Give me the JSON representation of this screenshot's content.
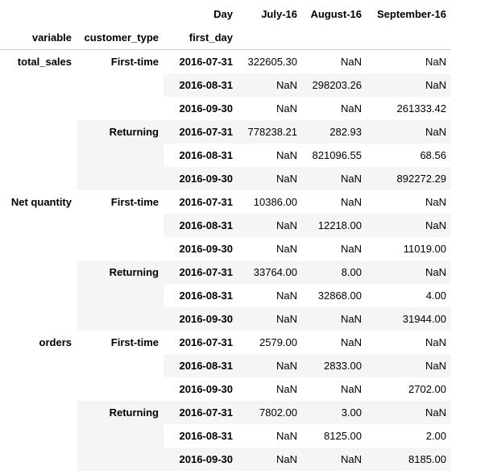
{
  "header": {
    "columns_label": "Day",
    "months": [
      "July-16",
      "August-16",
      "September-16"
    ],
    "index_names": [
      "variable",
      "customer_type",
      "first_day"
    ]
  },
  "groups": [
    {
      "variable": "total_sales",
      "sub": [
        {
          "customer_type": "First-time",
          "rows": [
            {
              "first_day": "2016-07-31",
              "values": [
                "322605.30",
                "NaN",
                "NaN"
              ]
            },
            {
              "first_day": "2016-08-31",
              "values": [
                "NaN",
                "298203.26",
                "NaN"
              ]
            },
            {
              "first_day": "2016-09-30",
              "values": [
                "NaN",
                "NaN",
                "261333.42"
              ]
            }
          ]
        },
        {
          "customer_type": "Returning",
          "rows": [
            {
              "first_day": "2016-07-31",
              "values": [
                "778238.21",
                "282.93",
                "NaN"
              ]
            },
            {
              "first_day": "2016-08-31",
              "values": [
                "NaN",
                "821096.55",
                "68.56"
              ]
            },
            {
              "first_day": "2016-09-30",
              "values": [
                "NaN",
                "NaN",
                "892272.29"
              ]
            }
          ]
        }
      ]
    },
    {
      "variable": "Net quantity",
      "sub": [
        {
          "customer_type": "First-time",
          "rows": [
            {
              "first_day": "2016-07-31",
              "values": [
                "10386.00",
                "NaN",
                "NaN"
              ]
            },
            {
              "first_day": "2016-08-31",
              "values": [
                "NaN",
                "12218.00",
                "NaN"
              ]
            },
            {
              "first_day": "2016-09-30",
              "values": [
                "NaN",
                "NaN",
                "11019.00"
              ]
            }
          ]
        },
        {
          "customer_type": "Returning",
          "rows": [
            {
              "first_day": "2016-07-31",
              "values": [
                "33764.00",
                "8.00",
                "NaN"
              ]
            },
            {
              "first_day": "2016-08-31",
              "values": [
                "NaN",
                "32868.00",
                "4.00"
              ]
            },
            {
              "first_day": "2016-09-30",
              "values": [
                "NaN",
                "NaN",
                "31944.00"
              ]
            }
          ]
        }
      ]
    },
    {
      "variable": "orders",
      "sub": [
        {
          "customer_type": "First-time",
          "rows": [
            {
              "first_day": "2016-07-31",
              "values": [
                "2579.00",
                "NaN",
                "NaN"
              ]
            },
            {
              "first_day": "2016-08-31",
              "values": [
                "NaN",
                "2833.00",
                "NaN"
              ]
            },
            {
              "first_day": "2016-09-30",
              "values": [
                "NaN",
                "NaN",
                "2702.00"
              ]
            }
          ]
        },
        {
          "customer_type": "Returning",
          "rows": [
            {
              "first_day": "2016-07-31",
              "values": [
                "7802.00",
                "3.00",
                "NaN"
              ]
            },
            {
              "first_day": "2016-08-31",
              "values": [
                "NaN",
                "8125.00",
                "2.00"
              ]
            },
            {
              "first_day": "2016-09-30",
              "values": [
                "NaN",
                "NaN",
                "8185.00"
              ]
            }
          ]
        }
      ]
    }
  ]
}
